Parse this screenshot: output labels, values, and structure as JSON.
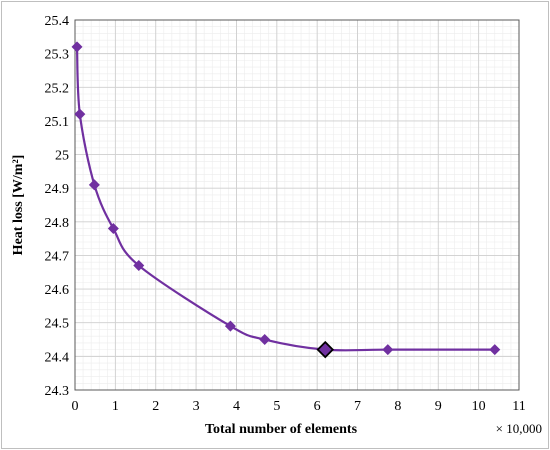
{
  "chart_data": {
    "type": "scatter",
    "style": "smooth-line-with-diamond-markers",
    "xlabel": "Total number of elements",
    "ylabel": "Heat loss  [W/m²]",
    "x_multiplier_label": "× 10,000",
    "xlim": [
      0,
      11
    ],
    "ylim": [
      24.3,
      25.4
    ],
    "x_ticks": [
      "0",
      "1",
      "2",
      "3",
      "4",
      "5",
      "6",
      "7",
      "8",
      "9",
      "10",
      "11"
    ],
    "y_ticks": [
      "24.3",
      "24.4",
      "24.5",
      "24.6",
      "24.7",
      "24.8",
      "24.9",
      "25",
      "25.1",
      "25.2",
      "25.3",
      "25.4"
    ],
    "grid": true,
    "legend": "none",
    "series": [
      {
        "color": "#7030a0",
        "points": [
          {
            "x": 0.05,
            "y": 25.32
          },
          {
            "x": 0.12,
            "y": 25.12
          },
          {
            "x": 0.48,
            "y": 24.91
          },
          {
            "x": 0.95,
            "y": 24.78
          },
          {
            "x": 1.58,
            "y": 24.67
          },
          {
            "x": 3.85,
            "y": 24.49
          },
          {
            "x": 4.7,
            "y": 24.45
          },
          {
            "x": 6.2,
            "y": 24.42
          },
          {
            "x": 7.75,
            "y": 24.42
          },
          {
            "x": 10.4,
            "y": 24.42
          }
        ],
        "highlighted_index": 7
      }
    ]
  }
}
